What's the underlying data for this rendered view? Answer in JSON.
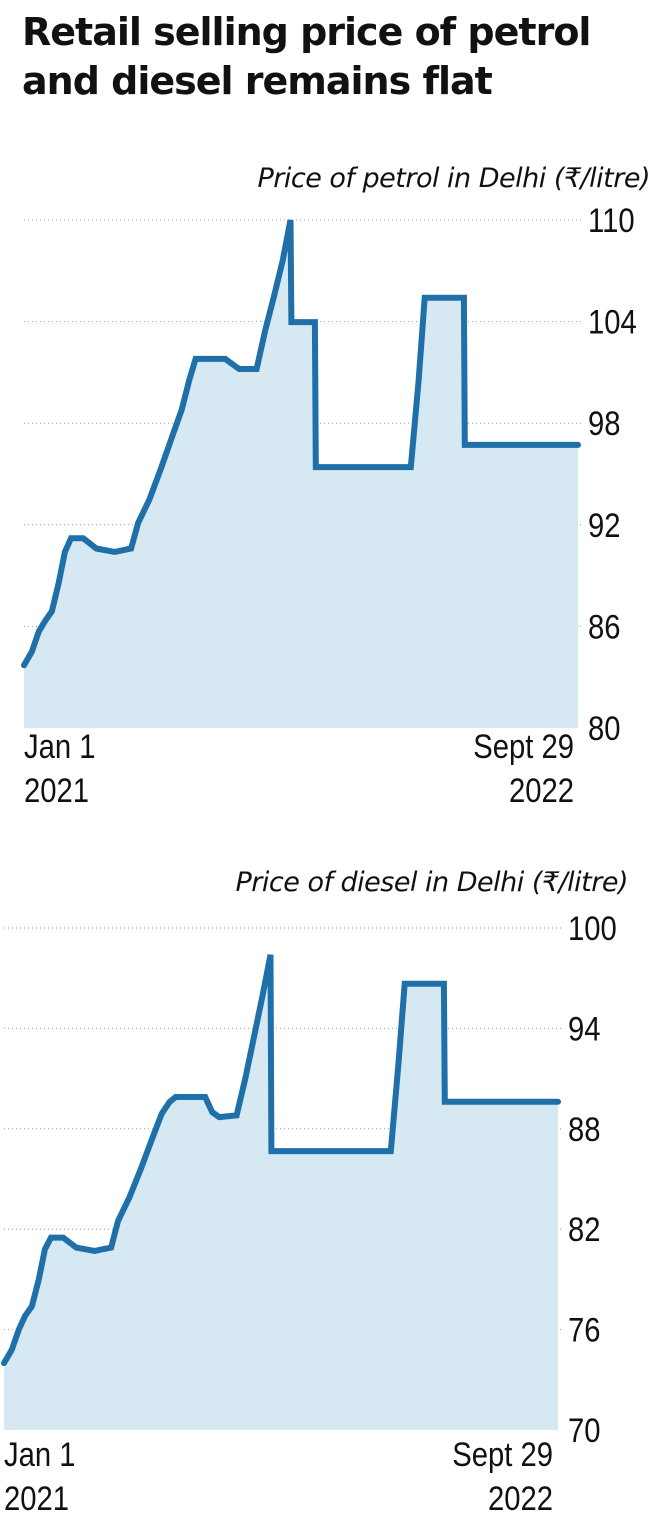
{
  "title": "Retail selling price of petrol and diesel remains flat",
  "colors": {
    "line": "#1f6fa8",
    "fill": "#d6e8f2",
    "grid": "#9a9a9a"
  },
  "chart_data": [
    {
      "type": "area",
      "title": "Price of petrol in Delhi (₹/litre)",
      "xlabel": "",
      "ylabel": "",
      "x_tick_labels": [
        {
          "line1": "Jan 1",
          "line2": "2021"
        },
        {
          "line1": "Sept 29",
          "line2": "2022"
        }
      ],
      "y_ticks": [
        80,
        86,
        92,
        98,
        104,
        110
      ],
      "ylim": [
        80,
        110
      ],
      "grid": "dotted horizontal",
      "series": [
        {
          "values": [
            [
              "2021-01-01",
              83.7
            ],
            [
              "2021-01-10",
              84.5
            ],
            [
              "2021-01-18",
              85.7
            ],
            [
              "2021-01-25",
              86.3
            ],
            [
              "2021-02-02",
              86.9
            ],
            [
              "2021-02-10",
              88.6
            ],
            [
              "2021-02-17",
              90.4
            ],
            [
              "2021-02-24",
              91.2
            ],
            [
              "2021-03-10",
              91.2
            ],
            [
              "2021-03-25",
              90.6
            ],
            [
              "2021-04-15",
              90.4
            ],
            [
              "2021-05-04",
              90.6
            ],
            [
              "2021-05-12",
              92.1
            ],
            [
              "2021-05-25",
              93.5
            ],
            [
              "2021-06-07",
              95.3
            ],
            [
              "2021-06-20",
              97.2
            ],
            [
              "2021-07-01",
              98.8
            ],
            [
              "2021-07-10",
              100.6
            ],
            [
              "2021-07-17",
              101.8
            ],
            [
              "2021-08-01",
              101.8
            ],
            [
              "2021-08-20",
              101.8
            ],
            [
              "2021-08-28",
              101.5
            ],
            [
              "2021-09-05",
              101.2
            ],
            [
              "2021-09-25",
              101.2
            ],
            [
              "2021-10-05",
              103.5
            ],
            [
              "2021-10-15",
              105.5
            ],
            [
              "2021-10-25",
              107.6
            ],
            [
              "2021-11-03",
              110.0
            ],
            [
              "2021-11-04",
              103.97
            ],
            [
              "2021-12-01",
              103.97
            ],
            [
              "2021-12-02",
              95.41
            ],
            [
              "2022-03-21",
              95.41
            ],
            [
              "2022-03-30",
              100.5
            ],
            [
              "2022-04-06",
              105.41
            ],
            [
              "2022-05-21",
              105.41
            ],
            [
              "2022-05-22",
              96.72
            ],
            [
              "2022-09-29",
              96.72
            ]
          ]
        }
      ]
    },
    {
      "type": "area",
      "title": "Price of diesel in Delhi (₹/litre)",
      "xlabel": "",
      "ylabel": "",
      "x_tick_labels": [
        {
          "line1": "Jan 1",
          "line2": "2021"
        },
        {
          "line1": "Sept 29",
          "line2": "2022"
        }
      ],
      "y_ticks": [
        70,
        76,
        82,
        88,
        94,
        100
      ],
      "ylim": [
        70,
        100
      ],
      "grid": "dotted horizontal",
      "series": [
        {
          "values": [
            [
              "2021-01-01",
              74.0
            ],
            [
              "2021-01-10",
              74.8
            ],
            [
              "2021-01-18",
              76.0
            ],
            [
              "2021-01-25",
              76.8
            ],
            [
              "2021-02-02",
              77.4
            ],
            [
              "2021-02-10",
              79.0
            ],
            [
              "2021-02-17",
              80.8
            ],
            [
              "2021-02-24",
              81.5
            ],
            [
              "2021-03-10",
              81.5
            ],
            [
              "2021-03-25",
              80.9
            ],
            [
              "2021-04-15",
              80.7
            ],
            [
              "2021-05-04",
              80.9
            ],
            [
              "2021-05-12",
              82.5
            ],
            [
              "2021-05-25",
              83.9
            ],
            [
              "2021-06-07",
              85.6
            ],
            [
              "2021-06-20",
              87.4
            ],
            [
              "2021-07-01",
              88.9
            ],
            [
              "2021-07-10",
              89.6
            ],
            [
              "2021-07-17",
              89.9
            ],
            [
              "2021-08-01",
              89.9
            ],
            [
              "2021-08-20",
              89.9
            ],
            [
              "2021-08-28",
              89.0
            ],
            [
              "2021-09-05",
              88.7
            ],
            [
              "2021-09-25",
              88.8
            ],
            [
              "2021-10-05",
              91.0
            ],
            [
              "2021-10-15",
              93.5
            ],
            [
              "2021-10-25",
              96.0
            ],
            [
              "2021-11-03",
              98.4
            ],
            [
              "2021-11-04",
              86.67
            ],
            [
              "2022-03-21",
              86.67
            ],
            [
              "2022-03-30",
              92.0
            ],
            [
              "2022-04-06",
              96.67
            ],
            [
              "2022-05-21",
              96.67
            ],
            [
              "2022-05-22",
              89.62
            ],
            [
              "2022-09-29",
              89.62
            ]
          ]
        }
      ]
    }
  ]
}
